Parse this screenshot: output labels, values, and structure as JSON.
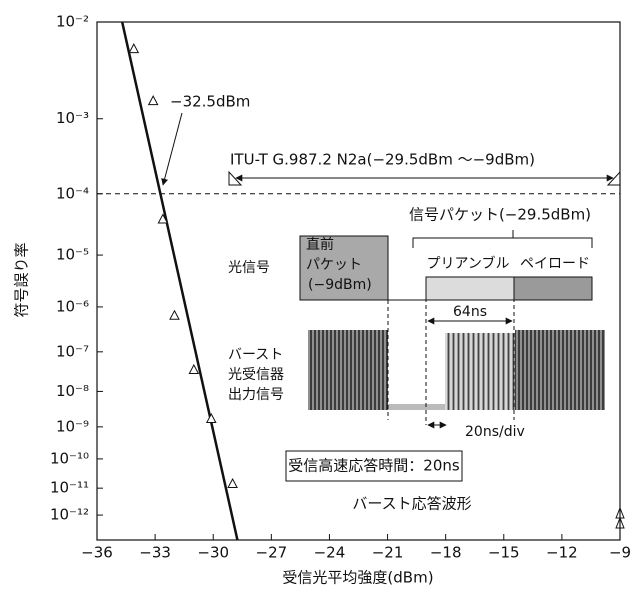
{
  "chart_data": {
    "type": "scatter",
    "x_label": "受信光平均強度(dBm)",
    "y_label": "符号誤り率",
    "x": [
      -34.1,
      -33.1,
      -32.6,
      -32.0,
      -31.0,
      -30.1,
      -29.0
    ],
    "values": [
      0.0056,
      0.0016,
      4e-05,
      6.5e-07,
      3.6e-08,
      1.7e-09,
      1.4e-11
    ],
    "fit": {
      "x": [
        -34.7,
        -28.75
      ],
      "values": [
        0.01,
        1e-13
      ]
    },
    "reference_line": 0.0001,
    "xlim": [
      -36,
      -9
    ],
    "xticks": [
      {
        "value": -36,
        "label": "−36"
      },
      {
        "value": -33,
        "label": "−33"
      },
      {
        "value": -30,
        "label": "−30"
      },
      {
        "value": -27,
        "label": "−27"
      },
      {
        "value": -24,
        "label": "−24"
      },
      {
        "value": -21,
        "label": "−21"
      },
      {
        "value": -18,
        "label": "−18"
      },
      {
        "value": -15,
        "label": "−15"
      },
      {
        "value": -12,
        "label": "−12"
      },
      {
        "value": -9,
        "label": "−9"
      }
    ],
    "ylim": [
      0.01,
      1e-13
    ],
    "yscale": "ber",
    "yticks": [
      {
        "value": 0.01,
        "label": "10⁻²"
      },
      {
        "value": 0.001,
        "label": "10⁻³"
      },
      {
        "value": 0.0001,
        "label": "10⁻⁴"
      },
      {
        "value": 1e-05,
        "label": "10⁻⁵"
      },
      {
        "value": 1e-06,
        "label": "10⁻⁶"
      },
      {
        "value": 1e-07,
        "label": "10⁻⁷"
      },
      {
        "value": 1e-08,
        "label": "10⁻⁸"
      },
      {
        "value": 1e-09,
        "label": "10⁻⁹"
      },
      {
        "value": 1e-10,
        "label": "10⁻¹⁰"
      },
      {
        "value": 1e-11,
        "label": "10⁻¹¹"
      },
      {
        "value": 1e-12,
        "label": "10⁻¹²"
      }
    ],
    "annotations": {
      "sensitivity": "−32.5dBm",
      "standard": "ITU-T G.987.2 N2a(−29.5dBm 〜−9dBm)",
      "packet": "信号パケット(−29.5dBm)",
      "optical_signal": "光信号",
      "previous_packet": [
        "直前",
        "パケット",
        "(−9dBm)"
      ],
      "preamble": "プリアンブル",
      "payload": "ペイロード",
      "preamble_length": "64ns",
      "receiver_output": [
        "バースト",
        "光受信器",
        "出力信号"
      ],
      "time_scale": "20ns/div",
      "response_time": "受信高速応答時間：20ns",
      "waveform_caption": "バースト応答波形"
    }
  }
}
